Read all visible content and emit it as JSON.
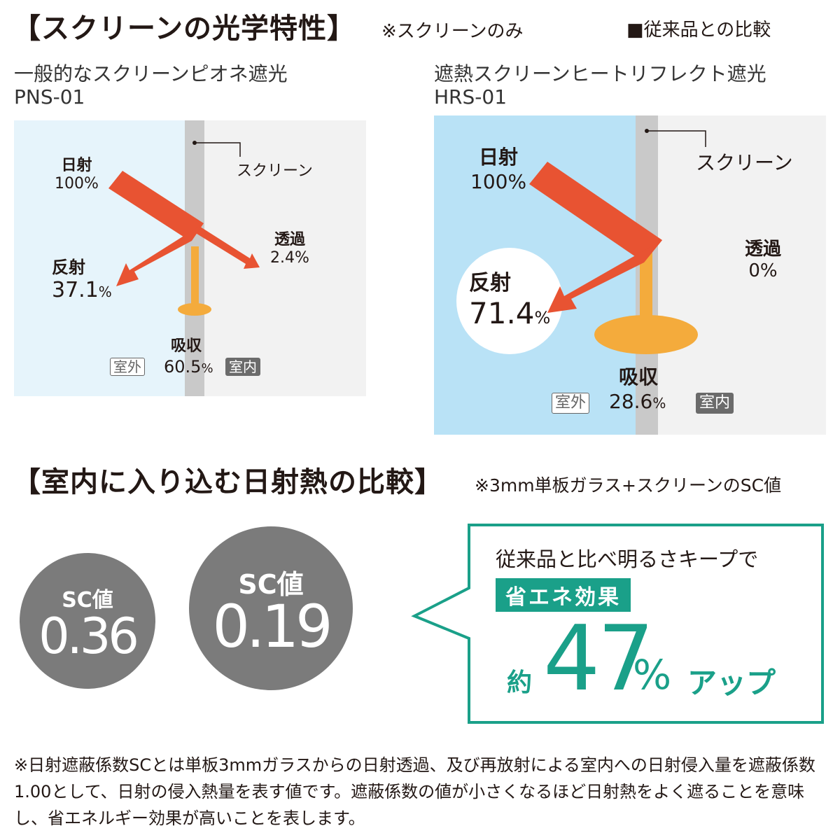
{
  "section1": {
    "title": "【スクリーンの光学特性】",
    "note": "※スクリーンのみ",
    "legend": "■従来品との比較"
  },
  "left": {
    "name": "一般的なスクリーンピオネ遮光",
    "code": "PNS-01",
    "incoming_label": "日射",
    "incoming_value": "100%",
    "screen_label": "スクリーン",
    "reflect_label": "反射",
    "reflect_value": "37.1",
    "transmit_label": "透過",
    "transmit_value": "2.4%",
    "absorb_label": "吸収",
    "absorb_value": "60.5",
    "outdoor": "室外",
    "indoor": "室内"
  },
  "right": {
    "name": "遮熱スクリーンヒートリフレクト遮光",
    "code": "HRS-01",
    "incoming_label": "日射",
    "incoming_value": "100%",
    "screen_label": "スクリーン",
    "reflect_label": "反射",
    "reflect_value": "71.4",
    "transmit_label": "透過",
    "transmit_value": "0%",
    "absorb_label": "吸収",
    "absorb_value": "28.6",
    "outdoor": "室外",
    "indoor": "室内"
  },
  "percent": "%",
  "section2": {
    "title": "【室内に入り込む日射熱の比較】",
    "note": "※3mm単板ガラス+スクリーンのSC値"
  },
  "sc_left": {
    "label": "SC値",
    "value": "0.36"
  },
  "sc_right": {
    "label": "SC値",
    "value": "0.19"
  },
  "callout": {
    "line1": "従来品と比べ明るさキープで",
    "badge": "省エネ効果",
    "prefix": "約",
    "number": "47",
    "unit": "%",
    "suffix": "アップ"
  },
  "footnote": "※日射遮蔽係数SCとは単板3mmガラスからの日射透過、及び再放射による室内への日射侵入量を遮蔽係数1.00として、日射の侵入熱量を表す値です。遮蔽係数の値が小さくなるほど日射熱をよく遮ることを意味し、省エネルギー効果が高いことを表します。",
  "colors": {
    "arrow": "#e85332",
    "absorb": "#f4ab3c",
    "screen": "#c9c9c9",
    "outdoor_left": "#e6f4fb",
    "outdoor_right": "#b9e2f6",
    "indoor": "#f2f2f2",
    "accent": "#1aa089",
    "circle": "#7b7b7b"
  }
}
